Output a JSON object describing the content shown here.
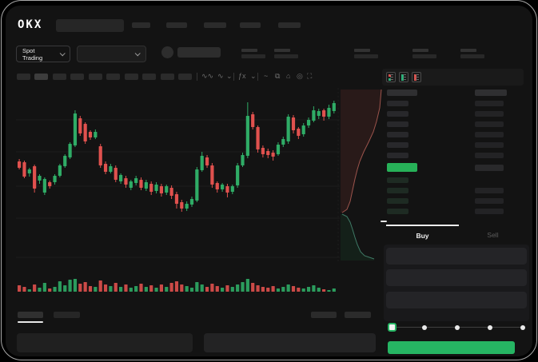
{
  "brand": "OKX",
  "subheader": {
    "market_selector_label": "Spot Trading"
  },
  "toolbar": {
    "icons": [
      {
        "name": "line-style-icon",
        "glyph": "∿∿"
      },
      {
        "name": "chart-type-icon",
        "glyph": "∿"
      },
      {
        "name": "chevron-down-icon",
        "glyph": "⌄"
      },
      {
        "name": "indicators-icon",
        "glyph": "ƒx"
      },
      {
        "name": "chevron-down-icon-2",
        "glyph": "⌄"
      },
      {
        "name": "overlay-icon",
        "glyph": "~"
      },
      {
        "name": "compare-icon",
        "glyph": "⧉"
      },
      {
        "name": "camera-icon",
        "glyph": "⌂"
      },
      {
        "name": "settings-icon",
        "glyph": "◎"
      },
      {
        "name": "fullscreen-icon",
        "glyph": "⛶"
      }
    ]
  },
  "order_book": {
    "view_icons": [
      "book-combined-icon",
      "book-bids-icon",
      "book-asks-icon"
    ],
    "ask_row_count": 6,
    "bid_row_count": 4,
    "ask_bar_color": "#28282b",
    "bid_bar_color": "#1e2b23",
    "amount_bar_color": "#232325",
    "header_bar_color": "#2f2f31",
    "last_price_color": "#27b158"
  },
  "trade_panel": {
    "tabs": [
      {
        "label": "Buy"
      },
      {
        "label": "Sell"
      }
    ],
    "slider_stops_pct": [
      0,
      25,
      50,
      75,
      100
    ],
    "slider_value_pct": 0,
    "submit_color": "#26b563"
  },
  "chart_data": {
    "type": "candlestick",
    "title": "",
    "xlabel": "",
    "ylabel": "",
    "note": "No axis tick labels visible; prices are relative units p (screen y = 335 - p).",
    "ylim": [
      5,
      225
    ],
    "grid_price_levels": [
      13,
      62,
      102,
      145,
      185
    ],
    "up_color": "#2fac66",
    "down_color": "#e0514e",
    "candles_ohlc": [
      [
        133,
        136,
        123,
        125
      ],
      [
        132,
        134,
        112,
        114
      ],
      [
        118,
        125,
        114,
        123
      ],
      [
        127,
        129,
        94,
        99
      ],
      [
        109,
        117,
        105,
        115
      ],
      [
        94,
        113,
        91,
        111
      ],
      [
        107,
        109,
        99,
        102
      ],
      [
        107,
        117,
        104,
        115
      ],
      [
        115,
        130,
        113,
        128
      ],
      [
        127,
        142,
        125,
        140
      ],
      [
        138,
        157,
        136,
        155
      ],
      [
        153,
        197,
        151,
        193
      ],
      [
        187,
        190,
        165,
        168
      ],
      [
        180,
        182,
        155,
        158
      ],
      [
        170,
        172,
        160,
        163
      ],
      [
        163,
        173,
        161,
        170
      ],
      [
        152,
        155,
        125,
        128
      ],
      [
        130,
        133,
        117,
        120
      ],
      [
        120,
        130,
        118,
        127
      ],
      [
        125,
        128,
        107,
        110
      ],
      [
        108,
        118,
        105,
        116
      ],
      [
        112,
        115,
        100,
        104
      ],
      [
        100,
        110,
        97,
        108
      ],
      [
        106,
        115,
        103,
        112
      ],
      [
        110,
        113,
        97,
        100
      ],
      [
        99,
        110,
        96,
        107
      ],
      [
        105,
        108,
        91,
        95
      ],
      [
        96,
        107,
        93,
        104
      ],
      [
        102,
        105,
        89,
        93
      ],
      [
        94,
        104,
        91,
        102
      ],
      [
        100,
        103,
        86,
        90
      ],
      [
        92,
        95,
        74,
        80
      ],
      [
        82,
        85,
        70,
        74
      ],
      [
        74,
        83,
        71,
        80
      ],
      [
        79,
        89,
        76,
        86
      ],
      [
        84,
        126,
        82,
        123
      ],
      [
        122,
        145,
        120,
        140
      ],
      [
        138,
        141,
        125,
        128
      ],
      [
        128,
        131,
        100,
        104
      ],
      [
        106,
        108,
        94,
        98
      ],
      [
        98,
        106,
        95,
        104
      ],
      [
        102,
        105,
        88,
        94
      ],
      [
        95,
        104,
        92,
        102
      ],
      [
        103,
        131,
        100,
        128
      ],
      [
        128,
        144,
        126,
        141
      ],
      [
        140,
        207,
        137,
        190
      ],
      [
        192,
        195,
        173,
        176
      ],
      [
        176,
        178,
        144,
        148
      ],
      [
        150,
        153,
        138,
        142
      ],
      [
        146,
        149,
        137,
        141
      ],
      [
        144,
        147,
        134,
        139
      ],
      [
        142,
        157,
        140,
        154
      ],
      [
        154,
        164,
        151,
        161
      ],
      [
        158,
        192,
        155,
        189
      ],
      [
        188,
        191,
        168,
        172
      ],
      [
        174,
        176,
        161,
        165
      ],
      [
        167,
        181,
        164,
        178
      ],
      [
        178,
        188,
        175,
        185
      ],
      [
        184,
        202,
        182,
        197
      ],
      [
        190,
        199,
        186,
        196
      ],
      [
        197,
        199,
        184,
        189
      ],
      [
        189,
        204,
        186,
        200
      ],
      [
        196,
        209,
        193,
        206
      ]
    ],
    "volume": [
      8,
      6,
      3,
      9,
      5,
      11,
      4,
      6,
      13,
      8,
      15,
      16,
      10,
      12,
      7,
      6,
      14,
      9,
      7,
      11,
      6,
      9,
      5,
      7,
      10,
      6,
      8,
      5,
      9,
      6,
      11,
      13,
      9,
      7,
      5,
      12,
      9,
      6,
      10,
      7,
      5,
      8,
      6,
      9,
      12,
      16,
      11,
      8,
      6,
      5,
      7,
      4,
      6,
      9,
      7,
      5,
      4,
      6,
      8,
      5,
      3,
      2,
      4
    ],
    "depth": {
      "ask_line": [
        [
          477,
          112
        ],
        [
          475,
          135
        ],
        [
          471,
          152
        ],
        [
          467,
          165
        ],
        [
          461,
          178
        ],
        [
          455,
          190
        ],
        [
          450,
          202
        ],
        [
          447,
          212
        ],
        [
          444,
          224
        ],
        [
          441,
          238
        ],
        [
          438,
          252
        ],
        [
          434,
          262
        ],
        [
          428,
          266
        ]
      ],
      "bid_line": [
        [
          428,
          268
        ],
        [
          434,
          271
        ],
        [
          438,
          278
        ],
        [
          441,
          287
        ],
        [
          444,
          297
        ],
        [
          447,
          306
        ],
        [
          451,
          315
        ],
        [
          456,
          320
        ],
        [
          462,
          322
        ],
        [
          468,
          324
        ]
      ],
      "ask_fill": "#291a19",
      "bid_fill": "#142019",
      "ask_stroke": "#9c544c",
      "bid_stroke": "#3f7a66"
    }
  }
}
